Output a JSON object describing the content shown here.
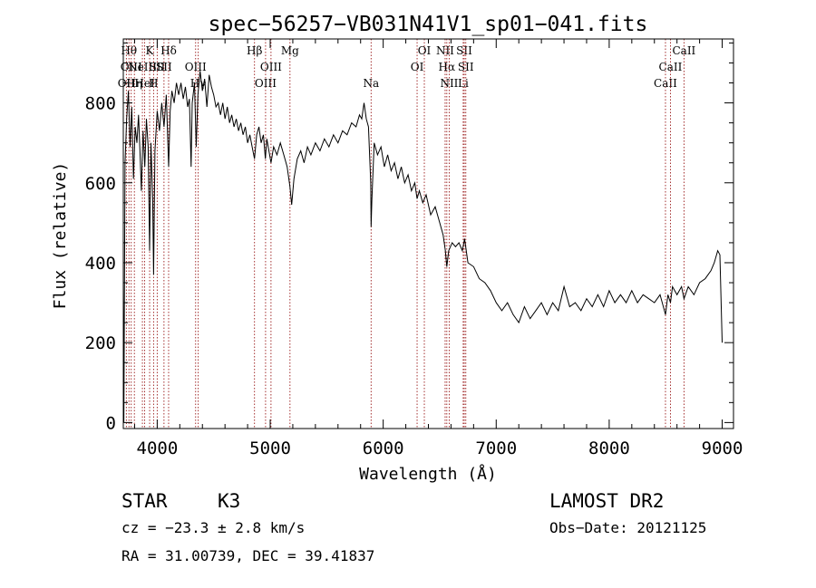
{
  "chart_data": {
    "type": "line",
    "title": "spec−56257−VB031N41V1_sp01−041.fits",
    "xlabel": "Wavelength (Å)",
    "ylabel": "Flux (relative)",
    "xlim": [
      3700,
      9100
    ],
    "ylim": [
      -15,
      960
    ],
    "xticks": [
      {
        "value": 4000,
        "label": "4000"
      },
      {
        "value": 5000,
        "label": "5000"
      },
      {
        "value": 6000,
        "label": "6000"
      },
      {
        "value": 7000,
        "label": "7000"
      },
      {
        "value": 8000,
        "label": "8000"
      },
      {
        "value": 9000,
        "label": "9000"
      }
    ],
    "yticks": [
      {
        "value": 0,
        "label": "0"
      },
      {
        "value": 200,
        "label": "200"
      },
      {
        "value": 400,
        "label": "400"
      },
      {
        "value": 600,
        "label": "600"
      },
      {
        "value": 800,
        "label": "800"
      }
    ],
    "series": [
      {
        "name": "flux",
        "points": [
          [
            3700,
            340
          ],
          [
            3705,
            0
          ],
          [
            3715,
            650
          ],
          [
            3730,
            760
          ],
          [
            3745,
            830
          ],
          [
            3760,
            690
          ],
          [
            3775,
            790
          ],
          [
            3790,
            610
          ],
          [
            3805,
            740
          ],
          [
            3820,
            700
          ],
          [
            3835,
            770
          ],
          [
            3850,
            660
          ],
          [
            3860,
            580
          ],
          [
            3875,
            730
          ],
          [
            3890,
            640
          ],
          [
            3905,
            760
          ],
          [
            3920,
            690
          ],
          [
            3933,
            430
          ],
          [
            3945,
            700
          ],
          [
            3960,
            560
          ],
          [
            3968,
            370
          ],
          [
            3980,
            680
          ],
          [
            4000,
            780
          ],
          [
            4020,
            730
          ],
          [
            4040,
            800
          ],
          [
            4060,
            740
          ],
          [
            4080,
            820
          ],
          [
            4101,
            640
          ],
          [
            4115,
            780
          ],
          [
            4130,
            830
          ],
          [
            4150,
            800
          ],
          [
            4170,
            850
          ],
          [
            4190,
            820
          ],
          [
            4210,
            850
          ],
          [
            4230,
            810
          ],
          [
            4250,
            840
          ],
          [
            4270,
            790
          ],
          [
            4285,
            810
          ],
          [
            4300,
            640
          ],
          [
            4310,
            800
          ],
          [
            4330,
            850
          ],
          [
            4345,
            690
          ],
          [
            4360,
            820
          ],
          [
            4380,
            880
          ],
          [
            4400,
            830
          ],
          [
            4420,
            860
          ],
          [
            4440,
            790
          ],
          [
            4460,
            870
          ],
          [
            4480,
            840
          ],
          [
            4500,
            820
          ],
          [
            4520,
            790
          ],
          [
            4540,
            800
          ],
          [
            4560,
            770
          ],
          [
            4580,
            800
          ],
          [
            4600,
            760
          ],
          [
            4620,
            790
          ],
          [
            4640,
            750
          ],
          [
            4660,
            770
          ],
          [
            4680,
            740
          ],
          [
            4700,
            760
          ],
          [
            4720,
            730
          ],
          [
            4740,
            750
          ],
          [
            4760,
            720
          ],
          [
            4780,
            740
          ],
          [
            4800,
            700
          ],
          [
            4820,
            720
          ],
          [
            4840,
            690
          ],
          [
            4861,
            660
          ],
          [
            4880,
            720
          ],
          [
            4900,
            740
          ],
          [
            4920,
            700
          ],
          [
            4940,
            720
          ],
          [
            4957,
            660
          ],
          [
            4970,
            710
          ],
          [
            5007,
            650
          ],
          [
            5030,
            690
          ],
          [
            5060,
            670
          ],
          [
            5090,
            700
          ],
          [
            5120,
            670
          ],
          [
            5150,
            640
          ],
          [
            5175,
            590
          ],
          [
            5190,
            545
          ],
          [
            5210,
            610
          ],
          [
            5240,
            660
          ],
          [
            5270,
            680
          ],
          [
            5300,
            650
          ],
          [
            5330,
            690
          ],
          [
            5360,
            670
          ],
          [
            5400,
            700
          ],
          [
            5440,
            680
          ],
          [
            5480,
            710
          ],
          [
            5520,
            690
          ],
          [
            5560,
            720
          ],
          [
            5600,
            700
          ],
          [
            5640,
            730
          ],
          [
            5680,
            720
          ],
          [
            5720,
            750
          ],
          [
            5760,
            740
          ],
          [
            5790,
            770
          ],
          [
            5810,
            760
          ],
          [
            5830,
            800
          ],
          [
            5850,
            760
          ],
          [
            5870,
            740
          ],
          [
            5890,
            600
          ],
          [
            5893,
            490
          ],
          [
            5900,
            560
          ],
          [
            5920,
            700
          ],
          [
            5950,
            670
          ],
          [
            5980,
            690
          ],
          [
            6010,
            640
          ],
          [
            6040,
            670
          ],
          [
            6070,
            630
          ],
          [
            6100,
            650
          ],
          [
            6130,
            610
          ],
          [
            6160,
            640
          ],
          [
            6190,
            600
          ],
          [
            6220,
            620
          ],
          [
            6250,
            580
          ],
          [
            6280,
            600
          ],
          [
            6300,
            560
          ],
          [
            6320,
            580
          ],
          [
            6350,
            550
          ],
          [
            6380,
            570
          ],
          [
            6420,
            520
          ],
          [
            6460,
            540
          ],
          [
            6500,
            500
          ],
          [
            6530,
            470
          ],
          [
            6550,
            430
          ],
          [
            6563,
            390
          ],
          [
            6580,
            430
          ],
          [
            6610,
            450
          ],
          [
            6640,
            440
          ],
          [
            6670,
            450
          ],
          [
            6700,
            430
          ],
          [
            6720,
            460
          ],
          [
            6750,
            400
          ],
          [
            6800,
            390
          ],
          [
            6850,
            360
          ],
          [
            6900,
            350
          ],
          [
            6950,
            330
          ],
          [
            7000,
            300
          ],
          [
            7050,
            280
          ],
          [
            7100,
            300
          ],
          [
            7150,
            270
          ],
          [
            7200,
            250
          ],
          [
            7250,
            290
          ],
          [
            7300,
            260
          ],
          [
            7350,
            280
          ],
          [
            7400,
            300
          ],
          [
            7450,
            270
          ],
          [
            7500,
            300
          ],
          [
            7550,
            280
          ],
          [
            7600,
            340
          ],
          [
            7650,
            290
          ],
          [
            7700,
            300
          ],
          [
            7750,
            280
          ],
          [
            7800,
            310
          ],
          [
            7850,
            290
          ],
          [
            7900,
            320
          ],
          [
            7950,
            290
          ],
          [
            8000,
            330
          ],
          [
            8050,
            300
          ],
          [
            8100,
            320
          ],
          [
            8150,
            300
          ],
          [
            8200,
            330
          ],
          [
            8250,
            300
          ],
          [
            8300,
            320
          ],
          [
            8350,
            310
          ],
          [
            8400,
            300
          ],
          [
            8450,
            320
          ],
          [
            8498,
            270
          ],
          [
            8520,
            320
          ],
          [
            8542,
            300
          ],
          [
            8560,
            340
          ],
          [
            8600,
            320
          ],
          [
            8640,
            340
          ],
          [
            8662,
            310
          ],
          [
            8700,
            340
          ],
          [
            8750,
            320
          ],
          [
            8800,
            350
          ],
          [
            8850,
            360
          ],
          [
            8900,
            380
          ],
          [
            8930,
            400
          ],
          [
            8960,
            430
          ],
          [
            8980,
            420
          ],
          [
            9000,
            200
          ]
        ]
      }
    ],
    "line_markers": [
      {
        "wavelength": 3727,
        "label": "OII",
        "row": 2
      },
      {
        "wavelength": 3750,
        "label": "Hθ",
        "row": 0
      },
      {
        "wavelength": 3770,
        "label": "OIII",
        "row": 1
      },
      {
        "wavelength": 3798,
        "label": "Hη",
        "row": 2
      },
      {
        "wavelength": 3869,
        "label": "NeIII",
        "row": 1
      },
      {
        "wavelength": 3889,
        "label": "HeI",
        "row": 2
      },
      {
        "wavelength": 3933,
        "label": "K",
        "row": 0
      },
      {
        "wavelength": 3968,
        "label": "H",
        "row": 2
      },
      {
        "wavelength": 4000,
        "label": "SII",
        "row": 1
      },
      {
        "wavelength": 4101,
        "label": "Hδ",
        "row": 0
      },
      {
        "wavelength": 4060,
        "label": "SII",
        "row": 1
      },
      {
        "wavelength": 4340,
        "label": "OIII",
        "row": 1
      },
      {
        "wavelength": 4363,
        "label": "Hγ",
        "row": 2
      },
      {
        "wavelength": 4861,
        "label": "Hβ",
        "row": 0
      },
      {
        "wavelength": 4959,
        "label": "OIII",
        "row": 2
      },
      {
        "wavelength": 5007,
        "label": "OIII",
        "row": 1
      },
      {
        "wavelength": 5175,
        "label": "Mg",
        "row": 0
      },
      {
        "wavelength": 5893,
        "label": "Na",
        "row": 2
      },
      {
        "wavelength": 6300,
        "label": "OI",
        "row": 1
      },
      {
        "wavelength": 6364,
        "label": "OI",
        "row": 0
      },
      {
        "wavelength": 6548,
        "label": "NII",
        "row": 0
      },
      {
        "wavelength": 6563,
        "label": "Hα",
        "row": 1
      },
      {
        "wavelength": 6584,
        "label": "NII",
        "row": 2
      },
      {
        "wavelength": 6708,
        "label": "Li",
        "row": 2
      },
      {
        "wavelength": 6717,
        "label": "SII",
        "row": 0
      },
      {
        "wavelength": 6731,
        "label": "SII",
        "row": 1
      },
      {
        "wavelength": 8498,
        "label": "CaII",
        "row": 2
      },
      {
        "wavelength": 8542,
        "label": "CaII",
        "row": 1
      },
      {
        "wavelength": 8662,
        "label": "CaII",
        "row": 0
      }
    ]
  },
  "info": {
    "object_class": "STAR",
    "subclass": "K3",
    "survey": "LAMOST DR2",
    "redshift": "cz = −23.3 ± 2.8 km/s",
    "obs_date": "Obs−Date: 20121125",
    "coords": "RA =  31.00739, DEC =  39.41837"
  }
}
